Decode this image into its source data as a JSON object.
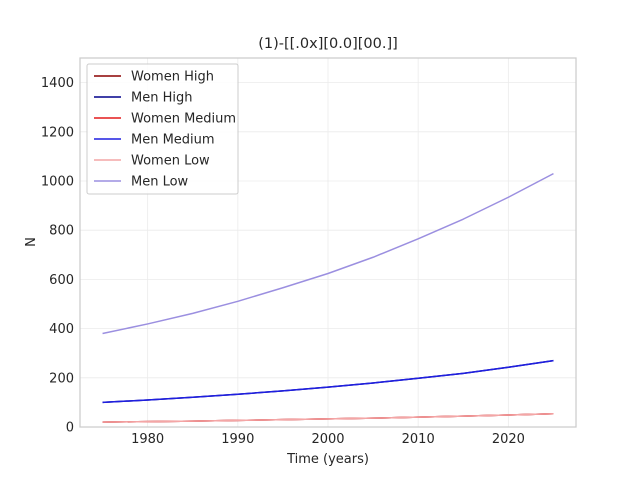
{
  "chart_data": {
    "type": "line",
    "title": "(1)-[[.0x][0.0][00.]]",
    "xlabel": "Time (years)",
    "ylabel": "N",
    "xlim": [
      1972.5,
      2027.5
    ],
    "ylim": [
      0,
      1500
    ],
    "xticks": [
      1980,
      1990,
      2000,
      2010,
      2020
    ],
    "yticks": [
      0,
      200,
      400,
      600,
      800,
      1000,
      1200,
      1400
    ],
    "grid": true,
    "legend_position": "top-left",
    "x": [
      1975,
      1980,
      1985,
      1990,
      1995,
      2000,
      2005,
      2010,
      2015,
      2020,
      2025
    ],
    "series": [
      {
        "name": "Women High",
        "color": "#8b0000",
        "values": [
          20,
          22,
          24,
          27,
          30,
          33,
          36,
          40,
          44,
          49,
          54
        ]
      },
      {
        "name": "Men High",
        "color": "#00008b",
        "values": [
          100,
          110,
          121,
          133,
          147,
          162,
          179,
          198,
          218,
          243,
          270
        ]
      },
      {
        "name": "Women Medium",
        "color": "#e31a1c",
        "values": [
          20,
          22,
          24,
          27,
          30,
          33,
          36,
          40,
          44,
          49,
          54
        ]
      },
      {
        "name": "Men Medium",
        "color": "#1f1fe0",
        "values": [
          100,
          110,
          121,
          133,
          147,
          162,
          179,
          198,
          218,
          243,
          270
        ]
      },
      {
        "name": "Women Low",
        "color": "#f4a6a6",
        "values": [
          20,
          22,
          24,
          27,
          30,
          33,
          36,
          40,
          44,
          49,
          54
        ]
      },
      {
        "name": "Men Low",
        "color": "#9b8fe0",
        "values": [
          380,
          419,
          462,
          511,
          566,
          624,
          690,
          765,
          845,
          934,
          1030
        ]
      }
    ]
  }
}
